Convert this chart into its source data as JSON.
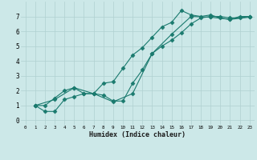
{
  "xlabel": "Humidex (Indice chaleur)",
  "bg_color": "#cce8e8",
  "line_color": "#1a7a6e",
  "marker": "D",
  "markersize": 2.5,
  "linewidth": 0.8,
  "xlim": [
    -0.5,
    23.5
  ],
  "ylim": [
    -0.3,
    8.0
  ],
  "xticks": [
    0,
    1,
    2,
    3,
    4,
    5,
    6,
    7,
    8,
    9,
    10,
    11,
    12,
    13,
    14,
    15,
    16,
    17,
    18,
    19,
    20,
    21,
    22,
    23
  ],
  "yticks": [
    0,
    1,
    2,
    3,
    4,
    5,
    6,
    7
  ],
  "grid_color": "#b0d0d0",
  "lines": [
    [
      [
        1,
        1
      ],
      [
        2,
        1
      ],
      [
        3,
        1.5
      ],
      [
        4,
        2
      ],
      [
        5,
        2.2
      ],
      [
        6,
        1.8
      ],
      [
        7,
        1.8
      ],
      [
        8,
        2.5
      ],
      [
        9,
        2.6
      ],
      [
        10,
        3.5
      ],
      [
        11,
        4.4
      ],
      [
        12,
        4.9
      ],
      [
        13,
        5.6
      ],
      [
        14,
        6.3
      ],
      [
        15,
        6.6
      ],
      [
        16,
        7.4
      ],
      [
        17,
        7.1
      ],
      [
        18,
        7.0
      ],
      [
        19,
        7.1
      ],
      [
        20,
        6.9
      ],
      [
        21,
        6.8
      ],
      [
        22,
        7.0
      ],
      [
        23,
        7.0
      ]
    ],
    [
      [
        1,
        1
      ],
      [
        2,
        0.6
      ],
      [
        3,
        0.6
      ],
      [
        4,
        1.4
      ],
      [
        5,
        1.6
      ],
      [
        6,
        1.8
      ],
      [
        7,
        1.8
      ],
      [
        8,
        1.7
      ],
      [
        9,
        1.3
      ],
      [
        10,
        1.3
      ],
      [
        11,
        2.5
      ],
      [
        12,
        3.4
      ],
      [
        13,
        4.5
      ],
      [
        14,
        5.0
      ],
      [
        15,
        5.4
      ],
      [
        16,
        5.9
      ],
      [
        17,
        6.5
      ],
      [
        18,
        6.9
      ],
      [
        19,
        7.0
      ],
      [
        20,
        7.0
      ],
      [
        21,
        6.9
      ],
      [
        22,
        6.9
      ],
      [
        23,
        7.0
      ]
    ],
    [
      [
        1,
        1
      ],
      [
        3,
        1.4
      ],
      [
        5,
        2.2
      ],
      [
        7,
        1.8
      ],
      [
        9,
        1.25
      ],
      [
        11,
        1.8
      ],
      [
        13,
        4.5
      ],
      [
        15,
        5.8
      ],
      [
        17,
        7.0
      ],
      [
        19,
        6.95
      ],
      [
        21,
        6.8
      ],
      [
        23,
        6.95
      ]
    ]
  ]
}
